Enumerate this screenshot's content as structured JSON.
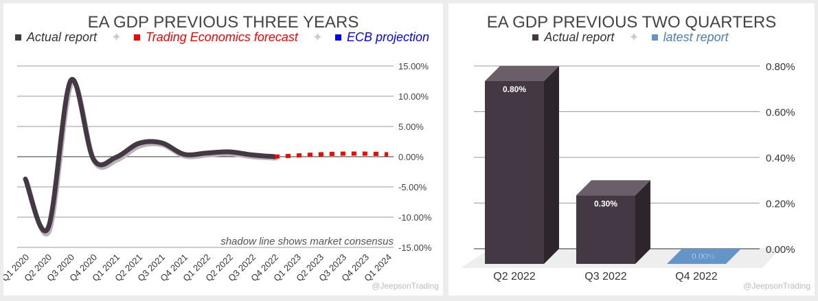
{
  "chart_data": [
    {
      "type": "line",
      "title": "EA GDP PREVIOUS THREE YEARS",
      "legend": [
        {
          "name": "Actual report",
          "color": "#433844"
        },
        {
          "name": "Trading Economics forecast",
          "color": "#ff0000"
        },
        {
          "name": "ECB projection",
          "color": "#0000ff"
        }
      ],
      "legend_separator": "✦",
      "categories": [
        "Q1 2020",
        "Q2 2020",
        "Q3 2020",
        "Q4 2020",
        "Q1 2021",
        "Q2 2021",
        "Q3 2021",
        "Q4 2021",
        "Q1 2022",
        "Q2 2022",
        "Q3 2022",
        "Q4 2022",
        "Q1 2023",
        "Q2 2023",
        "Q3 2023",
        "Q4 2023",
        "Q1 2024"
      ],
      "series": [
        {
          "name": "Actual report",
          "color": "#433844",
          "values": [
            -3.7,
            -11.8,
            12.6,
            -0.4,
            -0.1,
            2.2,
            2.3,
            0.4,
            0.6,
            0.8,
            0.3,
            0.0,
            null,
            null,
            null,
            null,
            null
          ]
        },
        {
          "name": "Consensus (shadow)",
          "color": "#bbb3bb",
          "values": [
            -3.8,
            -12.1,
            12.4,
            -0.6,
            -0.3,
            2.0,
            2.2,
            0.3,
            0.5,
            0.7,
            0.2,
            0.0,
            null,
            null,
            null,
            null,
            null
          ]
        },
        {
          "name": "Trading Economics forecast",
          "color": "#ff0000",
          "values": [
            null,
            null,
            null,
            null,
            null,
            null,
            null,
            null,
            null,
            null,
            null,
            0.0,
            0.2,
            0.4,
            0.5,
            0.5,
            0.4
          ]
        }
      ],
      "ylim": [
        -15,
        15
      ],
      "yticks": [
        15,
        10,
        5,
        0,
        -5,
        -10,
        -15
      ],
      "ytick_labels": [
        "15.00%",
        "10.00%",
        "5.00%",
        "0.00%",
        "-5.00%",
        "-10.00%",
        "-15.00%"
      ],
      "annotation": "shadow line shows market consensus",
      "watermark": "@JeepsonTrading"
    },
    {
      "type": "bar",
      "title": "EA GDP PREVIOUS TWO QUARTERS",
      "legend": [
        {
          "name": "Actual report",
          "color": "#433844"
        },
        {
          "name": "latest report",
          "color": "#6495c8"
        }
      ],
      "legend_separator": "✦",
      "categories": [
        "Q2 2022",
        "Q3 2022",
        "Q4 2022"
      ],
      "values": [
        0.8,
        0.3,
        0.0
      ],
      "data_labels": [
        "0.80%",
        "0.30%",
        "0.00%"
      ],
      "colors": [
        "#433844",
        "#433844",
        "#6495c8"
      ],
      "ylim": [
        0,
        0.8
      ],
      "yticks": [
        0.8,
        0.6,
        0.4,
        0.2,
        0
      ],
      "ytick_labels": [
        "0.80%",
        "0.60%",
        "0.40%",
        "0.20%",
        "0.00%"
      ],
      "watermark": "@JeepsonTrading"
    }
  ]
}
